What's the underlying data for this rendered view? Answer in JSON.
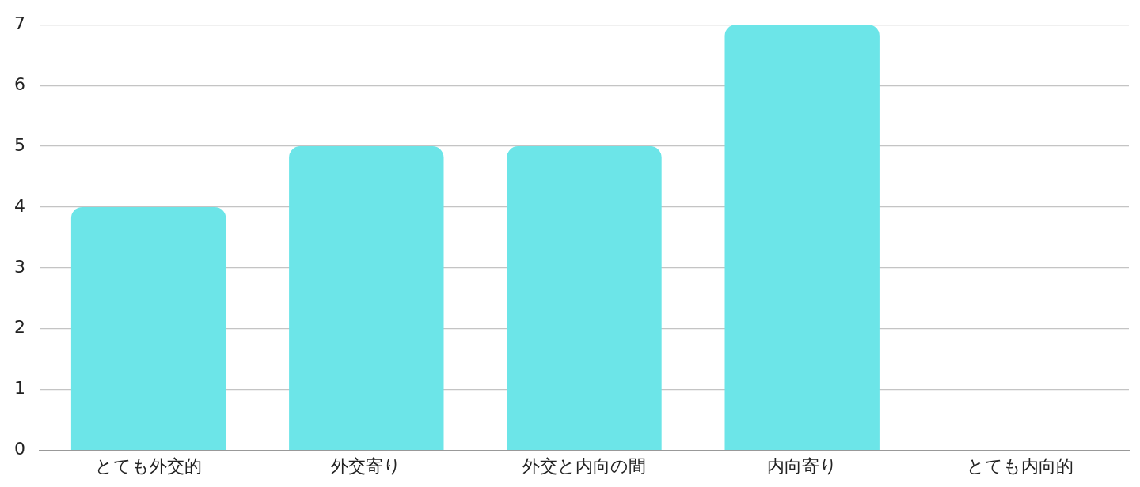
{
  "chart_data": {
    "type": "bar",
    "categories": [
      "とても外交的",
      "外交寄り",
      "外交と内向の間",
      "内向寄り",
      "とても内向的"
    ],
    "values": [
      4,
      5,
      5,
      7,
      0
    ],
    "color": "#6ce5e8",
    "ylim": [
      0,
      7
    ],
    "yticks": [
      0,
      1,
      2,
      3,
      4,
      5,
      6,
      7
    ],
    "grid": "y",
    "legend": false
  }
}
